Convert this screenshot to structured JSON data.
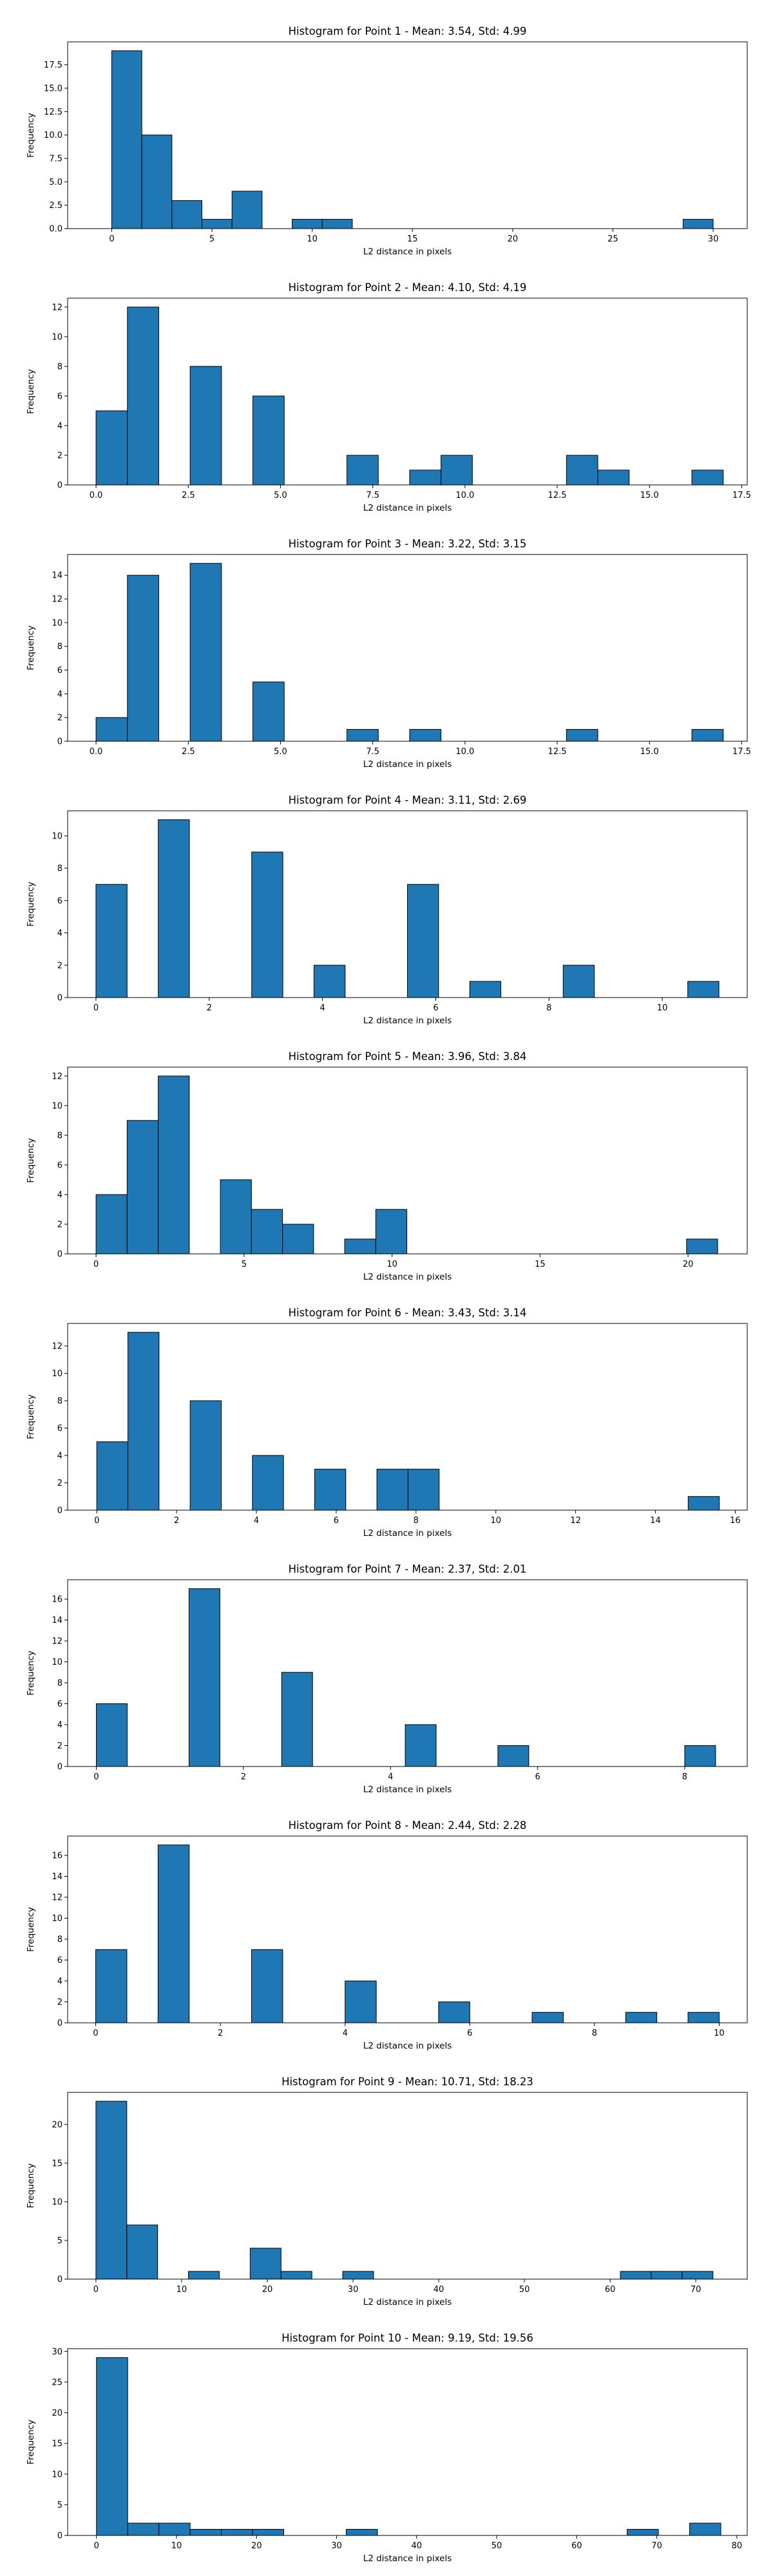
{
  "chart_data": [
    {
      "type": "bar",
      "title": "Histogram for Point 1 - Mean: 3.54, Std: 4.99",
      "xlabel": "L2 distance in pixels",
      "ylabel": "Frequency",
      "xlim": [
        -2.2,
        31.7
      ],
      "ylim": [
        0,
        19.95
      ],
      "xticks": [
        0,
        5,
        10,
        15,
        20,
        25,
        30
      ],
      "yticks": [
        0,
        2.5,
        5,
        7.5,
        10,
        12.5,
        15,
        17.5
      ],
      "ytick_labels": [
        "0.0",
        "2.5",
        "5.0",
        "7.5",
        "10.0",
        "12.5",
        "15.0",
        "17.5"
      ],
      "bin_width": 1.5,
      "bins": [
        {
          "x0": 0,
          "count": 19
        },
        {
          "x0": 1.5,
          "count": 10
        },
        {
          "x0": 3,
          "count": 3
        },
        {
          "x0": 4.5,
          "count": 1
        },
        {
          "x0": 6,
          "count": 4
        },
        {
          "x0": 9,
          "count": 1
        },
        {
          "x0": 10.5,
          "count": 1
        },
        {
          "x0": 28.5,
          "count": 1
        }
      ]
    },
    {
      "type": "bar",
      "title": "Histogram for Point 2 - Mean: 4.10, Std: 4.19",
      "xlabel": "L2 distance in pixels",
      "ylabel": "Frequency",
      "xlim": [
        -0.77,
        17.65
      ],
      "ylim": [
        0,
        12.6
      ],
      "xticks": [
        0,
        2.5,
        5,
        7.5,
        10,
        12.5,
        15,
        17.5
      ],
      "xtick_labels": [
        "0.0",
        "2.5",
        "5.0",
        "7.5",
        "10.0",
        "12.5",
        "15.0",
        "17.5"
      ],
      "yticks": [
        0,
        2,
        4,
        6,
        8,
        10,
        12
      ],
      "bin_width": 0.85,
      "bins": [
        {
          "x0": 0,
          "count": 5
        },
        {
          "x0": 0.85,
          "count": 12
        },
        {
          "x0": 2.55,
          "count": 8
        },
        {
          "x0": 4.25,
          "count": 6
        },
        {
          "x0": 6.8,
          "count": 2
        },
        {
          "x0": 8.5,
          "count": 1
        },
        {
          "x0": 9.35,
          "count": 2
        },
        {
          "x0": 12.75,
          "count": 2
        },
        {
          "x0": 13.6,
          "count": 1
        },
        {
          "x0": 16.15,
          "count": 1
        }
      ]
    },
    {
      "type": "bar",
      "title": "Histogram for Point 3 - Mean: 3.22, Std: 3.15",
      "xlabel": "L2 distance in pixels",
      "ylabel": "Frequency",
      "xlim": [
        -0.77,
        17.65
      ],
      "ylim": [
        0,
        15.75
      ],
      "xticks": [
        0,
        2.5,
        5,
        7.5,
        10,
        12.5,
        15,
        17.5
      ],
      "xtick_labels": [
        "0.0",
        "2.5",
        "5.0",
        "7.5",
        "10.0",
        "12.5",
        "15.0",
        "17.5"
      ],
      "yticks": [
        0,
        2,
        4,
        6,
        8,
        10,
        12,
        14
      ],
      "bin_width": 0.85,
      "bins": [
        {
          "x0": 0,
          "count": 2
        },
        {
          "x0": 0.85,
          "count": 14
        },
        {
          "x0": 2.55,
          "count": 15
        },
        {
          "x0": 4.25,
          "count": 5
        },
        {
          "x0": 6.8,
          "count": 1
        },
        {
          "x0": 8.5,
          "count": 1
        },
        {
          "x0": 12.75,
          "count": 1
        },
        {
          "x0": 16.15,
          "count": 1
        }
      ]
    },
    {
      "type": "bar",
      "title": "Histogram for Point 4 - Mean: 3.11, Std: 2.69",
      "xlabel": "L2 distance in pixels",
      "ylabel": "Frequency",
      "xlim": [
        -0.5,
        11.5
      ],
      "ylim": [
        0,
        11.55
      ],
      "xticks": [
        0,
        2,
        4,
        6,
        8,
        10
      ],
      "yticks": [
        0,
        2,
        4,
        6,
        8,
        10
      ],
      "bin_width": 0.55,
      "bins": [
        {
          "x0": 0,
          "count": 7
        },
        {
          "x0": 1.1,
          "count": 11
        },
        {
          "x0": 2.75,
          "count": 9
        },
        {
          "x0": 3.85,
          "count": 2
        },
        {
          "x0": 5.5,
          "count": 7
        },
        {
          "x0": 6.6,
          "count": 1
        },
        {
          "x0": 8.25,
          "count": 2
        },
        {
          "x0": 10.45,
          "count": 1
        }
      ]
    },
    {
      "type": "bar",
      "title": "Histogram for Point 5 - Mean: 3.96, Std: 3.84",
      "xlabel": "L2 distance in pixels",
      "ylabel": "Frequency",
      "xlim": [
        -0.96,
        22.0
      ],
      "ylim": [
        0,
        12.6
      ],
      "xticks": [
        0,
        5,
        10,
        15,
        20
      ],
      "yticks": [
        0,
        2,
        4,
        6,
        8,
        10,
        12
      ],
      "bin_width": 1.05,
      "bins": [
        {
          "x0": 0,
          "count": 4
        },
        {
          "x0": 1.05,
          "count": 9
        },
        {
          "x0": 2.1,
          "count": 12
        },
        {
          "x0": 4.2,
          "count": 5
        },
        {
          "x0": 5.25,
          "count": 3
        },
        {
          "x0": 6.3,
          "count": 2
        },
        {
          "x0": 8.4,
          "count": 1
        },
        {
          "x0": 9.45,
          "count": 3
        },
        {
          "x0": 19.95,
          "count": 1
        }
      ]
    },
    {
      "type": "bar",
      "title": "Histogram for Point 6 - Mean: 3.43, Std: 3.14",
      "xlabel": "L2 distance in pixels",
      "ylabel": "Frequency",
      "xlim": [
        -0.73,
        16.3
      ],
      "ylim": [
        0,
        13.65
      ],
      "xticks": [
        0,
        2,
        4,
        6,
        8,
        10,
        12,
        14,
        16
      ],
      "yticks": [
        0,
        2,
        4,
        6,
        8,
        10,
        12
      ],
      "bin_width": 0.78,
      "bins": [
        {
          "x0": 0,
          "count": 5
        },
        {
          "x0": 0.78,
          "count": 13
        },
        {
          "x0": 2.34,
          "count": 8
        },
        {
          "x0": 3.9,
          "count": 4
        },
        {
          "x0": 5.46,
          "count": 3
        },
        {
          "x0": 7.02,
          "count": 3
        },
        {
          "x0": 7.8,
          "count": 3
        },
        {
          "x0": 14.82,
          "count": 1
        }
      ]
    },
    {
      "type": "bar",
      "title": "Histogram for Point 7 - Mean: 2.37, Std: 2.01",
      "xlabel": "L2 distance in pixels",
      "ylabel": "Frequency",
      "xlim": [
        -0.39,
        8.85
      ],
      "ylim": [
        0,
        17.85
      ],
      "xticks": [
        0,
        2,
        4,
        6,
        8
      ],
      "yticks": [
        0,
        2,
        4,
        6,
        8,
        10,
        12,
        14,
        16
      ],
      "bin_width": 0.42,
      "bins": [
        {
          "x0": 0,
          "count": 6
        },
        {
          "x0": 1.26,
          "count": 17
        },
        {
          "x0": 2.52,
          "count": 9
        },
        {
          "x0": 4.2,
          "count": 4
        },
        {
          "x0": 5.46,
          "count": 2
        },
        {
          "x0": 8.0,
          "count": 2
        }
      ]
    },
    {
      "type": "bar",
      "title": "Histogram for Point 8 - Mean: 2.44, Std: 2.28",
      "xlabel": "L2 distance in pixels",
      "ylabel": "Frequency",
      "xlim": [
        -0.45,
        10.45
      ],
      "ylim": [
        0,
        17.85
      ],
      "xticks": [
        0,
        2,
        4,
        6,
        8,
        10
      ],
      "yticks": [
        0,
        2,
        4,
        6,
        8,
        10,
        12,
        14,
        16
      ],
      "bin_width": 0.5,
      "bins": [
        {
          "x0": 0,
          "count": 7
        },
        {
          "x0": 1.0,
          "count": 17
        },
        {
          "x0": 2.5,
          "count": 7
        },
        {
          "x0": 4.0,
          "count": 4
        },
        {
          "x0": 5.5,
          "count": 2
        },
        {
          "x0": 7.0,
          "count": 1
        },
        {
          "x0": 8.5,
          "count": 1
        },
        {
          "x0": 9.5,
          "count": 1
        }
      ]
    },
    {
      "type": "bar",
      "title": "Histogram for Point 9 - Mean: 10.71, Std: 18.23",
      "xlabel": "L2 distance in pixels",
      "ylabel": "Frequency",
      "xlim": [
        -3.3,
        76.0
      ],
      "ylim": [
        0,
        24.15
      ],
      "xticks": [
        0,
        10,
        20,
        30,
        40,
        50,
        60,
        70
      ],
      "yticks": [
        0,
        5,
        10,
        15,
        20
      ],
      "bin_width": 3.6,
      "bins": [
        {
          "x0": 0,
          "count": 23
        },
        {
          "x0": 3.6,
          "count": 7
        },
        {
          "x0": 10.8,
          "count": 1
        },
        {
          "x0": 18.0,
          "count": 4
        },
        {
          "x0": 21.6,
          "count": 1
        },
        {
          "x0": 28.8,
          "count": 1
        },
        {
          "x0": 61.2,
          "count": 1
        },
        {
          "x0": 64.8,
          "count": 1
        },
        {
          "x0": 68.4,
          "count": 1
        }
      ]
    },
    {
      "type": "bar",
      "title": "Histogram for Point 10 - Mean: 9.19, Std: 19.56",
      "xlabel": "L2 distance in pixels",
      "ylabel": "Frequency",
      "xlim": [
        -3.6,
        81.3
      ],
      "ylim": [
        0,
        30.45
      ],
      "xticks": [
        0,
        10,
        20,
        30,
        40,
        50,
        60,
        70,
        80
      ],
      "yticks": [
        0,
        5,
        10,
        15,
        20,
        25,
        30
      ],
      "bin_width": 3.9,
      "bins": [
        {
          "x0": 0,
          "count": 29
        },
        {
          "x0": 3.9,
          "count": 2
        },
        {
          "x0": 7.8,
          "count": 2
        },
        {
          "x0": 11.7,
          "count": 1
        },
        {
          "x0": 15.6,
          "count": 1
        },
        {
          "x0": 19.5,
          "count": 1
        },
        {
          "x0": 31.2,
          "count": 1
        },
        {
          "x0": 66.3,
          "count": 1
        },
        {
          "x0": 74.1,
          "count": 2
        }
      ]
    }
  ]
}
